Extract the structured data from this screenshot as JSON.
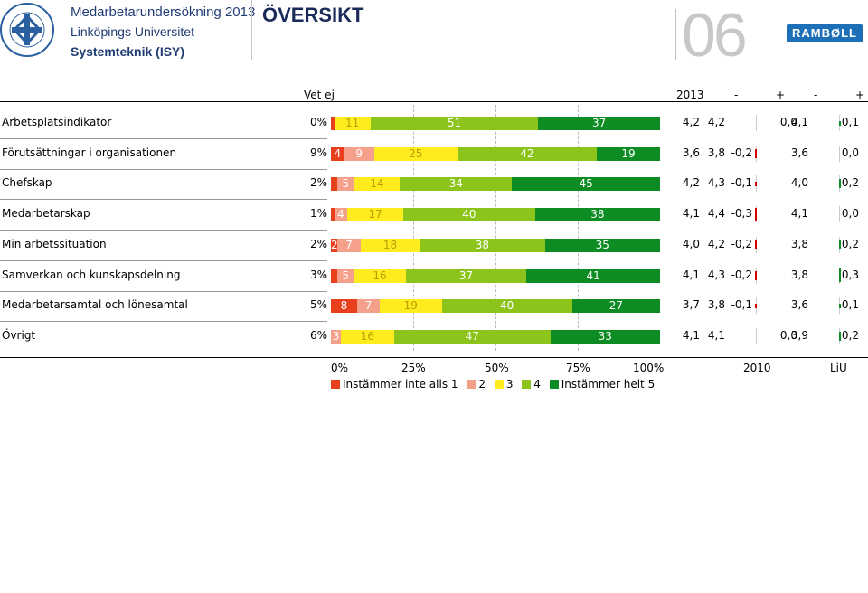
{
  "header": {
    "survey_title": "Medarbetarundersökning 2013",
    "university": "Linköpings Universitet",
    "department": "Systemteknik (ISY)",
    "page_title": "ÖVERSIKT",
    "page_number": "06",
    "logo_text": "RAMBØLL"
  },
  "columns": {
    "vet_ej": "Vet ej",
    "year": "2013",
    "minus1": "-",
    "plus1": "+",
    "minus2": "-",
    "plus2": "+"
  },
  "colors": {
    "s1": "#e8401c",
    "s2": "#f4a08a",
    "s3": "#ffec1f",
    "s4": "#8cc41c",
    "s5": "#0c8c22",
    "neg": "#d40000",
    "pos": "#0c8c22"
  },
  "chart_data": {
    "type": "bar",
    "orientation": "horizontal",
    "stacked": true,
    "xlim": [
      0,
      100
    ],
    "categories": [
      "Arbetsplatsindikator",
      "Förutsättningar i organisationen",
      "Chefskap",
      "Medarbetarskap",
      "Min arbetssituation",
      "Samverkan och kunskapsdelning",
      "Medarbetarsamtal och lönesamtal",
      "Övrigt"
    ],
    "vet_ej": [
      "0%",
      "9%",
      "2%",
      "1%",
      "2%",
      "3%",
      "5%",
      "6%"
    ],
    "series": [
      {
        "name": "Instämmer inte alls 1",
        "values": [
          1,
          4,
          2,
          1,
          2,
          2,
          8,
          0
        ]
      },
      {
        "name": "2",
        "values": [
          0,
          9,
          5,
          4,
          7,
          5,
          7,
          3
        ]
      },
      {
        "name": "3",
        "values": [
          11,
          25,
          14,
          17,
          18,
          16,
          19,
          16
        ]
      },
      {
        "name": "4",
        "values": [
          51,
          42,
          34,
          40,
          38,
          37,
          40,
          47
        ]
      },
      {
        "name": "Instämmer helt 5",
        "values": [
          37,
          19,
          45,
          38,
          35,
          41,
          27,
          33
        ]
      }
    ],
    "segment_labels": [
      [
        "",
        "",
        "11",
        "51",
        "37"
      ],
      [
        "4",
        "9",
        "25",
        "42",
        "19"
      ],
      [
        "",
        "5",
        "14",
        "34",
        "45"
      ],
      [
        "",
        "4",
        "17",
        "40",
        "38"
      ],
      [
        "2",
        "7",
        "18",
        "38",
        "35"
      ],
      [
        "",
        "5",
        "16",
        "37",
        "41"
      ],
      [
        "8",
        "7",
        "19",
        "40",
        "27"
      ],
      [
        "",
        "3",
        "16",
        "47",
        "33"
      ]
    ],
    "mean_2013": [
      "4,2",
      "3,6",
      "4,2",
      "4,1",
      "4,0",
      "4,1",
      "3,7",
      "4,1"
    ],
    "mean_2010": [
      "4,2",
      "3,8",
      "4,3",
      "4,4",
      "4,2",
      "4,3",
      "3,8",
      "4,1"
    ],
    "diff_2010": [
      "0,0",
      "-0,2",
      "-0,1",
      "-0,3",
      "-0,2",
      "-0,2",
      "-0,1",
      "0,0"
    ],
    "diff_2010_values": [
      0.0,
      -0.2,
      -0.1,
      -0.3,
      -0.2,
      -0.2,
      -0.1,
      0.0
    ],
    "mean_liu": [
      "4,1",
      "3,6",
      "4,0",
      "4,1",
      "3,8",
      "3,8",
      "3,6",
      "3,9"
    ],
    "diff_liu": [
      "0,1",
      "0,0",
      "0,2",
      "0,0",
      "0,2",
      "0,3",
      "0,1",
      "0,2"
    ],
    "diff_liu_values": [
      0.1,
      0.0,
      0.2,
      0.0,
      0.2,
      0.3,
      0.1,
      0.2
    ],
    "x_ticks": [
      "0%",
      "25%",
      "50%",
      "75%",
      "100%"
    ],
    "compare_labels": [
      "2010",
      "LiU"
    ],
    "legend": [
      "Instämmer inte alls 1",
      "2",
      "3",
      "4",
      "Instämmer helt 5"
    ]
  }
}
